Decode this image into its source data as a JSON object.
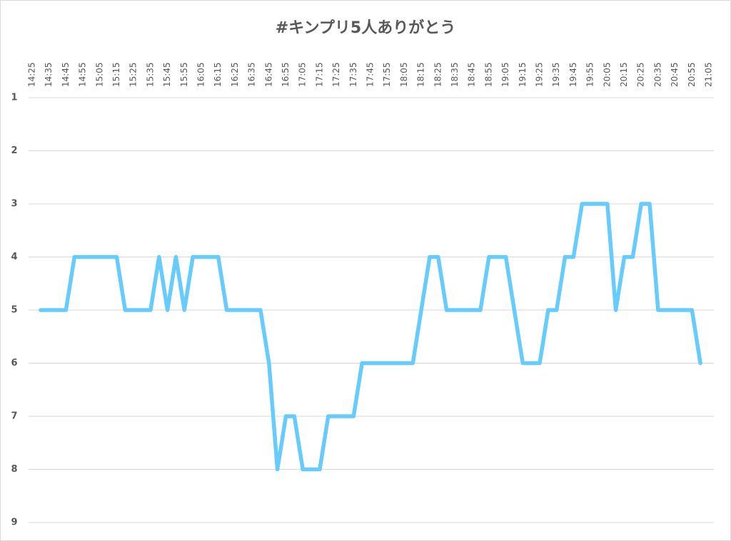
{
  "chart_data": {
    "type": "line",
    "title": "#キンプリ5人ありがとう",
    "categories": [
      "14:25",
      null,
      "14:35",
      null,
      "14:45",
      null,
      "14:55",
      null,
      "15:05",
      null,
      "15:15",
      null,
      "15:25",
      null,
      "15:35",
      null,
      "15:45",
      null,
      "15:55",
      null,
      "16:05",
      null,
      "16:15",
      null,
      "16:25",
      null,
      "16:35",
      null,
      "16:45",
      null,
      "16:55",
      null,
      "17:05",
      null,
      "17:15",
      null,
      "17:25",
      null,
      "17:35",
      null,
      "17:45",
      null,
      "17:55",
      null,
      "18:05",
      null,
      "18:15",
      null,
      "18:25",
      null,
      "18:35",
      null,
      "18:45",
      null,
      "18:55",
      null,
      "19:05",
      null,
      "19:15",
      null,
      "19:25",
      null,
      "19:35",
      null,
      "19:45",
      null,
      "19:55",
      null,
      "20:05",
      null,
      "20:15",
      null,
      "20:25",
      null,
      "20:35",
      null,
      "20:45",
      null,
      "20:55",
      null,
      "21:05"
    ],
    "series": [
      {
        "color": "#66ccff",
        "values": [
          null,
          5,
          5,
          5,
          5,
          4,
          4,
          4,
          4,
          4,
          4,
          5,
          5,
          5,
          5,
          4,
          5,
          4,
          5,
          4,
          4,
          4,
          4,
          5,
          5,
          5,
          5,
          5,
          6,
          8,
          7,
          7,
          8,
          8,
          8,
          7,
          7,
          7,
          7,
          6,
          6,
          6,
          6,
          6,
          6,
          6,
          5,
          4,
          4,
          5,
          5,
          5,
          5,
          5,
          4,
          4,
          4,
          5,
          6,
          6,
          6,
          5,
          5,
          4,
          4,
          3,
          3,
          3,
          3,
          5,
          4,
          4,
          3,
          3,
          5,
          5,
          5,
          5,
          5,
          6,
          null
        ]
      }
    ],
    "ylim": [
      1,
      9
    ],
    "y_inverted": true,
    "yticks": [
      1,
      2,
      3,
      4,
      5,
      6,
      7,
      8,
      9
    ],
    "grid": true
  }
}
